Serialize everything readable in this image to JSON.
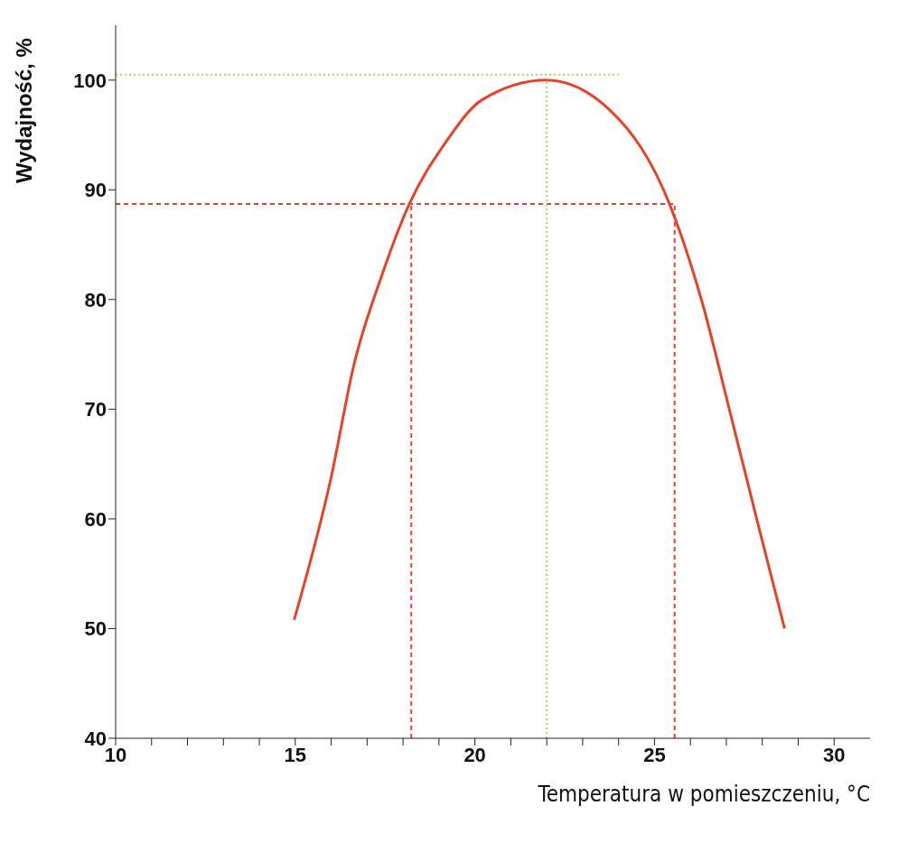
{
  "chart_data": {
    "type": "line",
    "xlabel": "Temperatura w pomieszczeniu, °C",
    "ylabel": "Wydajność, %",
    "xlim": [
      10,
      31
    ],
    "ylim": [
      40,
      105
    ],
    "xticks": [
      10,
      {
        "value": 11,
        "label": null
      },
      {
        "value": 12,
        "label": null
      },
      {
        "value": 13,
        "label": null
      },
      {
        "value": 14,
        "label": null
      },
      15,
      {
        "value": 16,
        "label": null
      },
      {
        "value": 17,
        "label": null
      },
      {
        "value": 18,
        "label": null
      },
      {
        "value": 19,
        "label": null
      },
      20,
      {
        "value": 21,
        "label": null
      },
      {
        "value": 22,
        "label": null
      },
      {
        "value": 23,
        "label": null
      },
      {
        "value": 24,
        "label": null
      },
      25,
      {
        "value": 26,
        "label": null
      },
      {
        "value": 27,
        "label": null
      },
      {
        "value": 28,
        "label": null
      },
      {
        "value": 29,
        "label": null
      },
      30
    ],
    "yticks": [
      40,
      50,
      60,
      70,
      80,
      90,
      100
    ],
    "grid": false,
    "marker": "none",
    "series": [
      {
        "color": "#e8412a",
        "line_style": "solid",
        "x": [
          14.97,
          16.0,
          16.63,
          17.4,
          18.16,
          19.18,
          20.2,
          21.99,
          23.78,
          25.43,
          26.33,
          27.09,
          27.86,
          28.62
        ],
        "values": [
          50.8,
          63.8,
          74.0,
          82.1,
          88.6,
          94.3,
          98.2,
          100,
          97.2,
          88.6,
          79.7,
          69.9,
          59.8,
          50.0
        ]
      },
      {
        "color": "#e04535",
        "line_style": "dashed",
        "x": [
          10,
          25.6
        ],
        "values": [
          88.7,
          88.7
        ]
      },
      {
        "color": "#e04535",
        "line_style": "dashed",
        "x": [
          18.23,
          18.23
        ],
        "values": [
          40,
          88.7
        ]
      },
      {
        "color": "#e04535",
        "line_style": "dashed",
        "x": [
          25.56,
          25.56
        ],
        "values": [
          40,
          88.7
        ]
      },
      {
        "color": "#a6d26a",
        "line_style": "dotted",
        "x": [
          10,
          24
        ],
        "values": [
          100.5,
          100.5
        ]
      },
      {
        "color": "#a6d26a",
        "line_style": "dotted",
        "x": [
          22,
          22
        ],
        "values": [
          40,
          100.5
        ]
      }
    ]
  }
}
